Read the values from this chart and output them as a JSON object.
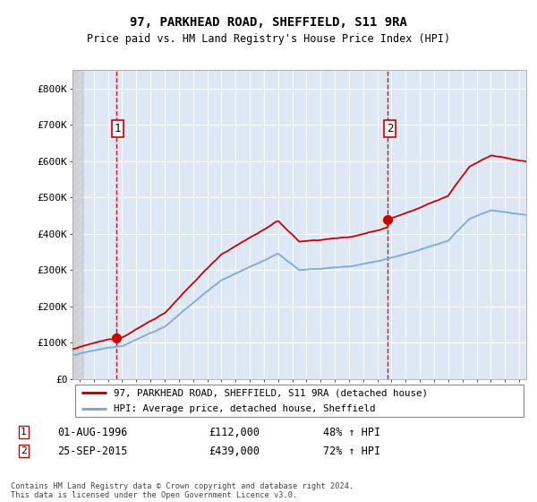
{
  "title1": "97, PARKHEAD ROAD, SHEFFIELD, S11 9RA",
  "title2": "Price paid vs. HM Land Registry's House Price Index (HPI)",
  "ylim": [
    0,
    850000
  ],
  "yticks": [
    0,
    100000,
    200000,
    300000,
    400000,
    500000,
    600000,
    700000,
    800000
  ],
  "ytick_labels": [
    "£0",
    "£100K",
    "£200K",
    "£300K",
    "£400K",
    "£500K",
    "£600K",
    "£700K",
    "£800K"
  ],
  "sale1_date": 1996.583,
  "sale1_price": 112000,
  "sale1_label": "1",
  "sale2_date": 2015.729,
  "sale2_price": 439000,
  "sale2_label": "2",
  "line_color_property": "#cc0000",
  "line_color_hpi": "#7eaacc",
  "background_plot": "#dde8f4",
  "legend_line1": "97, PARKHEAD ROAD, SHEFFIELD, S11 9RA (detached house)",
  "legend_line2": "HPI: Average price, detached house, Sheffield",
  "note1_label": "1",
  "note1_date": "01-AUG-1996",
  "note1_price": "£112,000",
  "note1_hpi": "48% ↑ HPI",
  "note2_label": "2",
  "note2_date": "25-SEP-2015",
  "note2_price": "£439,000",
  "note2_hpi": "72% ↑ HPI",
  "footer": "Contains HM Land Registry data © Crown copyright and database right 2024.\nThis data is licensed under the Open Government Licence v3.0.",
  "xmin": 1993.5,
  "xmax": 2025.5
}
